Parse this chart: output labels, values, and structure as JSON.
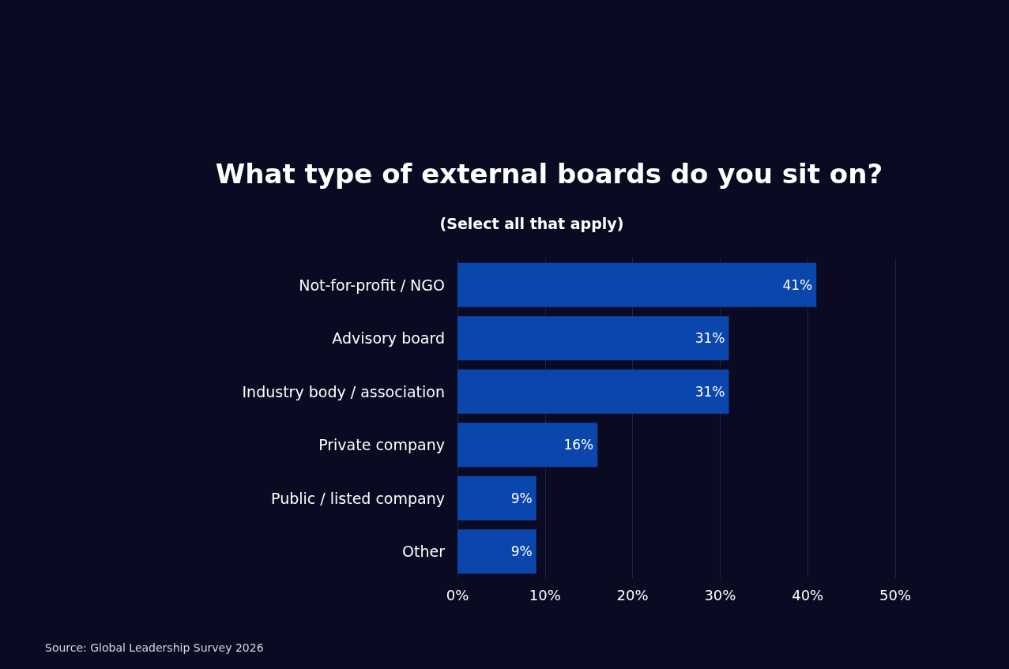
{
  "chart_data": {
    "type": "bar",
    "orientation": "horizontal",
    "title": "What type of external boards do you sit on?",
    "subtitle": "(Select all that apply)",
    "categories": [
      "Not-for-profit / NGO",
      "Advisory board",
      "Industry body / association",
      "Private company",
      "Public / listed company",
      "Other"
    ],
    "values": [
      41,
      31,
      31,
      16,
      9,
      9
    ],
    "color": "#0b46ad",
    "value_labels": [
      "41%",
      "31%",
      "31%",
      "16%",
      "9%",
      "9%"
    ],
    "xlim": [
      0,
      50
    ],
    "xticks": [
      {
        "value": 0,
        "label": "0%"
      },
      {
        "value": 10,
        "label": "10%"
      },
      {
        "value": 20,
        "label": "20%"
      },
      {
        "value": 30,
        "label": "30%"
      },
      {
        "value": 40,
        "label": "40%"
      },
      {
        "value": 50,
        "label": "50%"
      }
    ],
    "grid": "x",
    "annotations": [
      "Source: Global Leadership Survey 2026"
    ]
  }
}
